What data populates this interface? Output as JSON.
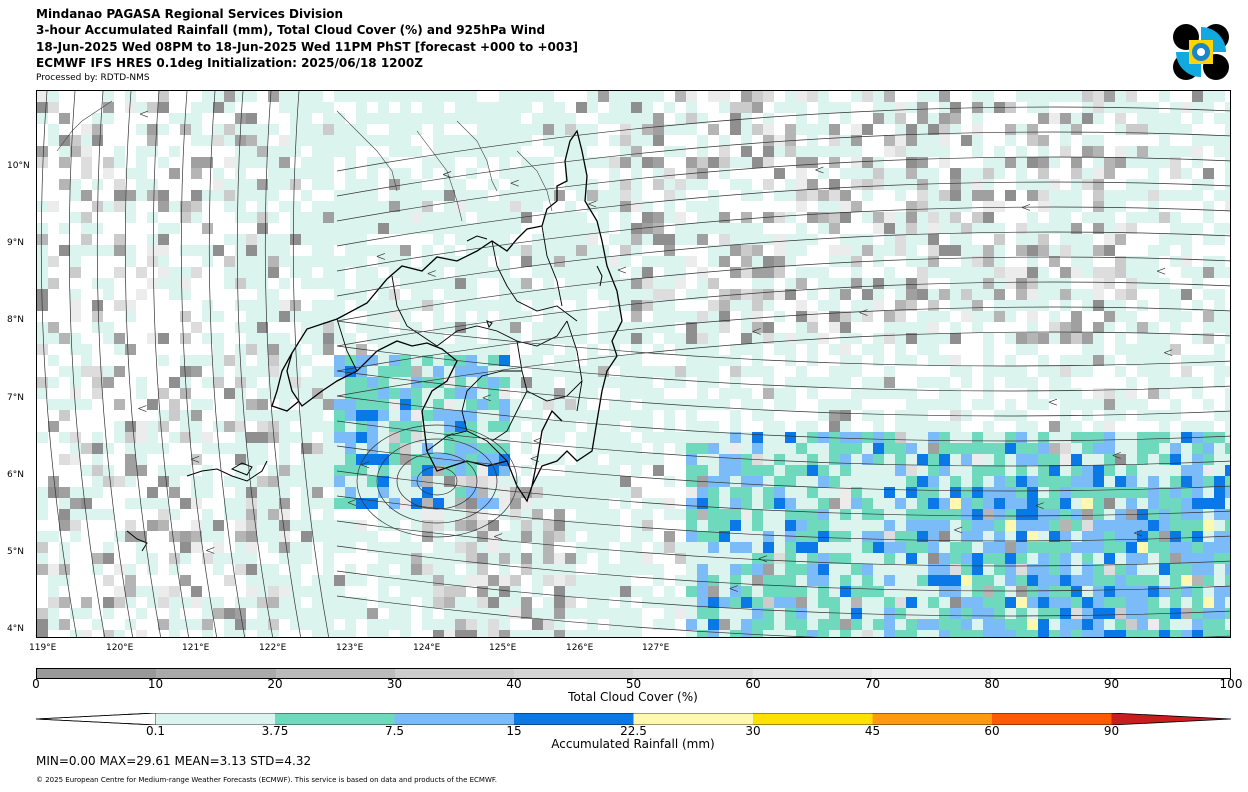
{
  "header": {
    "line1": "Mindanao PAGASA Regional Services Division",
    "line2": "3-hour Accumulated Rainfall (mm), Total Cloud Cover (%) and 925hPa Wind",
    "line3": "18-Jun-2025 Wed 08PM to 18-Jun-2025 Wed 11PM PhST [forecast +000 to +003]",
    "line4": "ECMWF IFS HRES 0.1deg Initialization: 2025/06/18 1200Z",
    "processed": "Processed by: RDTD-NMS"
  },
  "map": {
    "lat_labels": [
      "10°N",
      "9°N",
      "8°N",
      "7°N",
      "6°N",
      "5°N",
      "4°N"
    ],
    "lon_labels": [
      "119°E",
      "120°E",
      "121°E",
      "122°E",
      "123°E",
      "124°E",
      "125°E",
      "126°E",
      "127°E"
    ]
  },
  "cloud_colorbar": {
    "title": "Total Cloud Cover (%)",
    "ticks": [
      "0",
      "10",
      "20",
      "30",
      "40",
      "50",
      "60",
      "70",
      "80",
      "90",
      "100"
    ],
    "colors": [
      "#999999",
      "#aaaaaa",
      "#bbbbbb",
      "#cccccc",
      "#d5d5d5",
      "#dddddd",
      "#e5e5e5",
      "#eeeeee",
      "#f5f5f5",
      "#ffffff"
    ]
  },
  "rain_colorbar": {
    "title": "Accumulated Rainfall (mm)",
    "ticks": [
      "0.1",
      "3.75",
      "7.5",
      "15",
      "22.5",
      "30",
      "45",
      "60",
      "90"
    ],
    "colors": [
      "#dbf4ee",
      "#6fd9be",
      "#7bbcf8",
      "#0a78e6",
      "#fff8b0",
      "#ffe100",
      "#ff9a10",
      "#ff5a00",
      "#c81e1e"
    ]
  },
  "stats": "MIN=0.00   MAX=29.61   MEAN=3.13   STD=4.32",
  "copyright": "© 2025 European Centre for Medium-range Weather Forecasts (ECMWF). This service is based on data and products of the ECMWF."
}
